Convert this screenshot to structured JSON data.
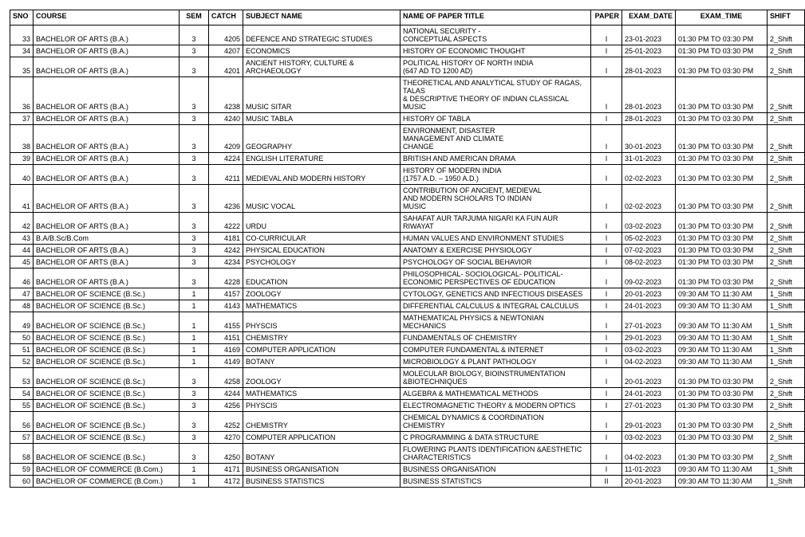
{
  "columns": [
    "SNO",
    "COURSE",
    "SEM",
    "CATCH",
    "SUBJECT NAME",
    "NAME OF PAPER TITLE",
    "PAPER",
    "EXAM_DATE",
    "EXAM_TIME",
    "SHIFT"
  ],
  "rows": [
    {
      "sno": "33",
      "course": "BACHELOR OF ARTS (B.A.)",
      "sem": "3",
      "catch": "4205",
      "subject": "DEFENCE AND STRATEGIC STUDIES",
      "title": "NATIONAL SECURITY -\nCONCEPTUAL ASPECTS",
      "paper": "I",
      "date": "23-01-2023",
      "time": "01:30 PM TO 03:30 PM",
      "shift": "2_Shift"
    },
    {
      "sno": "34",
      "course": "BACHELOR OF ARTS (B.A.)",
      "sem": "3",
      "catch": "4207",
      "subject": "ECONOMICS",
      "title": "HISTORY OF ECONOMIC THOUGHT",
      "paper": "I",
      "date": "25-01-2023",
      "time": "01:30 PM TO 03:30 PM",
      "shift": "2_Shift"
    },
    {
      "sno": "35",
      "course": "BACHELOR OF ARTS (B.A.)",
      "sem": "3",
      "catch": "4201",
      "subject": "ANCIENT HISTORY, CULTURE & ARCHAEOLOGY",
      "title": "POLITICAL HISTORY OF NORTH INDIA\n(647 AD TO 1200 AD)",
      "paper": "I",
      "date": "28-01-2023",
      "time": "01:30 PM TO 03:30 PM",
      "shift": "2_Shift"
    },
    {
      "sno": "36",
      "course": "BACHELOR OF ARTS (B.A.)",
      "sem": "3",
      "catch": "4238",
      "subject": "MUSIC  SITAR",
      "title": "THEORETICAL AND ANALYTICAL STUDY OF RAGAS,\nTALAS\n& DESCRIPTIVE THEORY OF INDIAN CLASSICAL MUSIC",
      "paper": "I",
      "date": "28-01-2023",
      "time": "01:30 PM TO 03:30 PM",
      "shift": "2_Shift"
    },
    {
      "sno": "37",
      "course": "BACHELOR OF ARTS (B.A.)",
      "sem": "3",
      "catch": "4240",
      "subject": "MUSIC TABLA",
      "title": "HISTORY OF TABLA",
      "paper": "I",
      "date": "28-01-2023",
      "time": "01:30 PM TO 03:30 PM",
      "shift": "2_Shift"
    },
    {
      "sno": "38",
      "course": "BACHELOR OF ARTS (B.A.)",
      "sem": "3",
      "catch": "4209",
      "subject": "GEOGRAPHY",
      "title": "ENVIRONMENT, DISASTER\nMANAGEMENT AND CLIMATE\nCHANGE",
      "paper": "I",
      "date": "30-01-2023",
      "time": "01:30 PM TO 03:30 PM",
      "shift": "2_Shift"
    },
    {
      "sno": "39",
      "course": "BACHELOR OF ARTS (B.A.)",
      "sem": "3",
      "catch": "4224",
      "subject": "ENGLISH LITERATURE",
      "title": "BRITISH AND AMERICAN DRAMA",
      "paper": "I",
      "date": "31-01-2023",
      "time": "01:30 PM TO 03:30 PM",
      "shift": "2_Shift"
    },
    {
      "sno": "40",
      "course": "BACHELOR OF ARTS (B.A.)",
      "sem": "3",
      "catch": "4211",
      "subject": "MEDIEVAL AND MODERN HISTORY",
      "title": "HISTORY OF MODERN INDIA\n(1757 A.D. – 1950 A.D.)",
      "paper": "I",
      "date": "02-02-2023",
      "time": "01:30 PM TO 03:30 PM",
      "shift": "2_Shift"
    },
    {
      "sno": "41",
      "course": "BACHELOR OF ARTS (B.A.)",
      "sem": "3",
      "catch": "4236",
      "subject": "MUSIC VOCAL",
      "title": "CONTRIBUTION OF ANCIENT, MEDIEVAL\nAND MODERN SCHOLARS TO INDIAN\nMUSIC",
      "paper": "I",
      "date": "02-02-2023",
      "time": "01:30 PM TO 03:30 PM",
      "shift": "2_Shift"
    },
    {
      "sno": "42",
      "course": "BACHELOR OF ARTS (B.A.)",
      "sem": "3",
      "catch": "4222",
      "subject": "URDU",
      "title": "SAHAFAT AUR TARJUMA NIGARI KA FUN AUR\nRIWAYAT",
      "paper": "I",
      "date": "03-02-2023",
      "time": "01:30 PM TO 03:30 PM",
      "shift": "2_Shift"
    },
    {
      "sno": "43",
      "course": "B.A/B.Sc/B.Com",
      "sem": "3",
      "catch": "4181",
      "subject": "CO-CURRICULAR",
      "title": "HUMAN VALUES AND ENVIRONMENT STUDIES",
      "paper": "I",
      "date": "05-02-2023",
      "time": "01:30 PM TO 03:30 PM",
      "shift": "2_Shift"
    },
    {
      "sno": "44",
      "course": "BACHELOR OF ARTS (B.A.)",
      "sem": "3",
      "catch": "4242",
      "subject": "PHYSICAL EDUCATION",
      "title": "ANATOMY & EXERCISE PHYSIOLOGY",
      "paper": "I",
      "date": "07-02-2023",
      "time": "01:30 PM TO 03:30 PM",
      "shift": "2_Shift"
    },
    {
      "sno": "45",
      "course": "BACHELOR OF ARTS (B.A.)",
      "sem": "3",
      "catch": "4234",
      "subject": "PSYCHOLOGY",
      "title": "PSYCHOLOGY OF SOCIAL BEHAVIOR",
      "paper": "I",
      "date": "08-02-2023",
      "time": "01:30 PM TO 03:30 PM",
      "shift": "2_Shift"
    },
    {
      "sno": "46",
      "course": "BACHELOR OF ARTS (B.A.)",
      "sem": "3",
      "catch": "4228",
      "subject": "EDUCATION",
      "title": "PHILOSOPHICAL- SOCIOLOGICAL- POLITICAL-\nECONOMIC PERSPECTIVES OF EDUCATION",
      "paper": "I",
      "date": "09-02-2023",
      "time": "01:30 PM TO 03:30 PM",
      "shift": "2_Shift"
    },
    {
      "sno": "47",
      "course": "BACHELOR OF SCIENCE (B.Sc.)",
      "sem": "1",
      "catch": "4157",
      "subject": "ZOOLOGY",
      "title": "CYTOLOGY, GENETICS AND INFECTIOUS DISEASES",
      "paper": "I",
      "date": "20-01-2023",
      "time": "09:30 AM TO 11:30 AM",
      "shift": "1_Shift"
    },
    {
      "sno": "48",
      "course": "BACHELOR OF SCIENCE (B.Sc.)",
      "sem": "1",
      "catch": "4143",
      "subject": "MATHEMATICS",
      "title": "DIFFERENTIAL CALCULUS & INTEGRAL CALCULUS",
      "paper": "I",
      "date": "24-01-2023",
      "time": "09:30 AM TO 11:30 AM",
      "shift": "1_Shift"
    },
    {
      "sno": "49",
      "course": "BACHELOR OF SCIENCE (B.Sc.)",
      "sem": "1",
      "catch": "4155",
      "subject": "PHYSCIS",
      "title": "MATHEMATICAL PHYSICS & NEWTONIAN\nMECHANICS",
      "paper": "I",
      "date": "27-01-2023",
      "time": "09:30 AM TO 11:30 AM",
      "shift": "1_Shift"
    },
    {
      "sno": "50",
      "course": "BACHELOR OF SCIENCE (B.Sc.)",
      "sem": "1",
      "catch": "4151",
      "subject": "CHEMISTRY",
      "title": "FUNDAMENTALS OF CHEMISTRY",
      "paper": "I",
      "date": "29-01-2023",
      "time": "09:30 AM TO 11:30 AM",
      "shift": "1_Shift"
    },
    {
      "sno": "51",
      "course": "BACHELOR OF SCIENCE (B.Sc.)",
      "sem": "1",
      "catch": "4169",
      "subject": "COMPUTER APPLICATION",
      "title": "COMPUTER FUNDAMENTAL & INTERNET",
      "paper": "I",
      "date": "03-02-2023",
      "time": "09:30 AM TO 11:30 AM",
      "shift": "1_Shift"
    },
    {
      "sno": "52",
      "course": "BACHELOR OF SCIENCE (B.Sc.)",
      "sem": "1",
      "catch": "4149",
      "subject": "BOTANY",
      "title": "MICROBIOLOGY & PLANT PATHOLOGY",
      "paper": "I",
      "date": "04-02-2023",
      "time": "09:30 AM TO 11:30 AM",
      "shift": "1_Shift"
    },
    {
      "sno": "53",
      "course": "BACHELOR OF SCIENCE (B.Sc.)",
      "sem": "3",
      "catch": "4258",
      "subject": "ZOOLOGY",
      "title": "MOLECULAR BIOLOGY, BIOINSTRUMENTATION\n&BIOTECHNIQUES",
      "paper": "I",
      "date": "20-01-2023",
      "time": "01:30 PM TO 03:30 PM",
      "shift": "2_Shift"
    },
    {
      "sno": "54",
      "course": "BACHELOR OF SCIENCE (B.Sc.)",
      "sem": "3",
      "catch": "4244",
      "subject": "MATHEMATICS",
      "title": "ALGEBRA & MATHEMATICAL METHODS",
      "paper": "I",
      "date": "24-01-2023",
      "time": "01:30 PM TO 03:30 PM",
      "shift": "2_Shift"
    },
    {
      "sno": "55",
      "course": "BACHELOR OF SCIENCE (B.Sc.)",
      "sem": "3",
      "catch": "4256",
      "subject": "PHYSCIS",
      "title": "ELECTROMAGNETIC THEORY & MODERN OPTICS",
      "paper": "I",
      "date": "27-01-2023",
      "time": "01:30 PM TO 03:30 PM",
      "shift": "2_Shift"
    },
    {
      "sno": "56",
      "course": "BACHELOR OF SCIENCE (B.Sc.)",
      "sem": "3",
      "catch": "4252",
      "subject": "CHEMISTRY",
      "title": "CHEMICAL DYNAMICS & COORDINATION\nCHEMISTRY",
      "paper": "I",
      "date": "29-01-2023",
      "time": "01:30 PM TO 03:30 PM",
      "shift": "2_Shift"
    },
    {
      "sno": "57",
      "course": "BACHELOR OF SCIENCE (B.Sc.)",
      "sem": "3",
      "catch": "4270",
      "subject": "COMPUTER APPLICATION",
      "title": "C PROGRAMMING & DATA STRUCTURE",
      "paper": "I",
      "date": "03-02-2023",
      "time": "01:30 PM TO 03:30 PM",
      "shift": "2_Shift"
    },
    {
      "sno": "58",
      "course": "BACHELOR OF SCIENCE (B.Sc.)",
      "sem": "3",
      "catch": "4250",
      "subject": "BOTANY",
      "title": "FLOWERING PLANTS IDENTIFICATION &AESTHETIC\nCHARACTERISTICS",
      "paper": "I",
      "date": "04-02-2023",
      "time": "01:30 PM TO 03:30 PM",
      "shift": "2_Shift"
    },
    {
      "sno": "59",
      "course": "BACHELOR OF COMMERCE (B.Com.)",
      "sem": "1",
      "catch": "4171",
      "subject": "BUSINESS ORGANISATION",
      "title": "BUSINESS ORGANISATION",
      "paper": "I",
      "date": "11-01-2023",
      "time": "09:30 AM TO 11:30 AM",
      "shift": "1_Shift"
    },
    {
      "sno": "60",
      "course": "BACHELOR OF COMMERCE (B.Com.)",
      "sem": "1",
      "catch": "4172",
      "subject": "BUSINESS STATISTICS",
      "title": "BUSINESS STATISTICS",
      "paper": "II",
      "date": "20-01-2023",
      "time": "09:30 AM TO 11:30 AM",
      "shift": "1_Shift"
    }
  ]
}
